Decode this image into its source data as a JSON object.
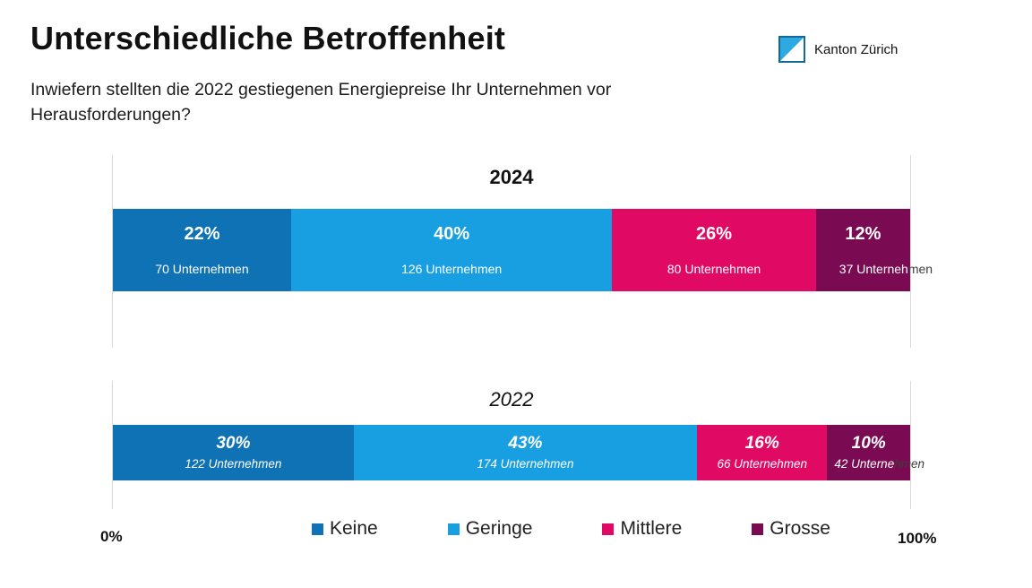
{
  "header": {
    "title": "Unterschiedliche Betroffenheit",
    "subtitle_line1": "Inwiefern stellten die 2022 gestiegenen Energiepreise Ihr Unternehmen vor",
    "subtitle_line2": "Herausforderungen?",
    "logo_label": "Kanton Zürich"
  },
  "palette": {
    "keine": "#0e72b5",
    "geringe": "#189fe2",
    "mittlere": "#e00a64",
    "grosse": "#7a0b53",
    "logo_blue": "#2fa9e1",
    "logo_border": "#15679a",
    "gridline": "#d9d9d9",
    "overflow_text": "#3d3d3d"
  },
  "chart_data": {
    "type": "bar",
    "subtype": "stacked-horizontal-100pct",
    "xlim": [
      0,
      100
    ],
    "x_ticks": [
      "0%",
      "100%"
    ],
    "legend": [
      "Keine",
      "Geringe",
      "Mittlere",
      "Grosse"
    ],
    "legend_position": "bottom",
    "grid": "vertical-edges-only",
    "charts": [
      {
        "title": "2024",
        "categories": [
          "Keine",
          "Geringe",
          "Mittlere",
          "Grosse"
        ],
        "values_pct": [
          22,
          40,
          26,
          12
        ],
        "counts": [
          70,
          126,
          80,
          37
        ],
        "segments": [
          {
            "category": "Keine",
            "color_key": "keine",
            "width_pct": 22.36,
            "pct_label": "22%",
            "count_label": "70 Unternehmen"
          },
          {
            "category": "Geringe",
            "color_key": "geringe",
            "width_pct": 40.26,
            "pct_label": "40%",
            "count_label": "126 Unternehmen"
          },
          {
            "category": "Mittlere",
            "color_key": "mittlere",
            "width_pct": 25.56,
            "pct_label": "26%",
            "count_label": "80 Unternehmen"
          },
          {
            "category": "Grosse",
            "color_key": "grosse",
            "width_pct": 11.82,
            "pct_label": "12%",
            "count_label": "37 Unternehmen",
            "count_label_inside": "37 Unterneh",
            "count_label_outside": "men"
          }
        ]
      },
      {
        "title": "2022",
        "categories": [
          "Keine",
          "Geringe",
          "Mittlere",
          "Grosse"
        ],
        "values_pct": [
          30,
          43,
          16,
          10
        ],
        "counts": [
          122,
          174,
          66,
          42
        ],
        "segments": [
          {
            "category": "Keine",
            "color_key": "keine",
            "width_pct": 30.2,
            "pct_label": "30%",
            "count_label": "122 Unternehmen"
          },
          {
            "category": "Geringe",
            "color_key": "geringe",
            "width_pct": 43.07,
            "pct_label": "43%",
            "count_label": "174 Unternehmen"
          },
          {
            "category": "Mittlere",
            "color_key": "mittlere",
            "width_pct": 16.33,
            "pct_label": "16%",
            "count_label": "66 Unternehmen"
          },
          {
            "category": "Grosse",
            "color_key": "grosse",
            "width_pct": 10.4,
            "pct_label": "10%",
            "count_label": "42 Unternehmen",
            "count_label_inside": "42 Unterne",
            "count_label_outside": "hmen"
          }
        ]
      }
    ]
  }
}
